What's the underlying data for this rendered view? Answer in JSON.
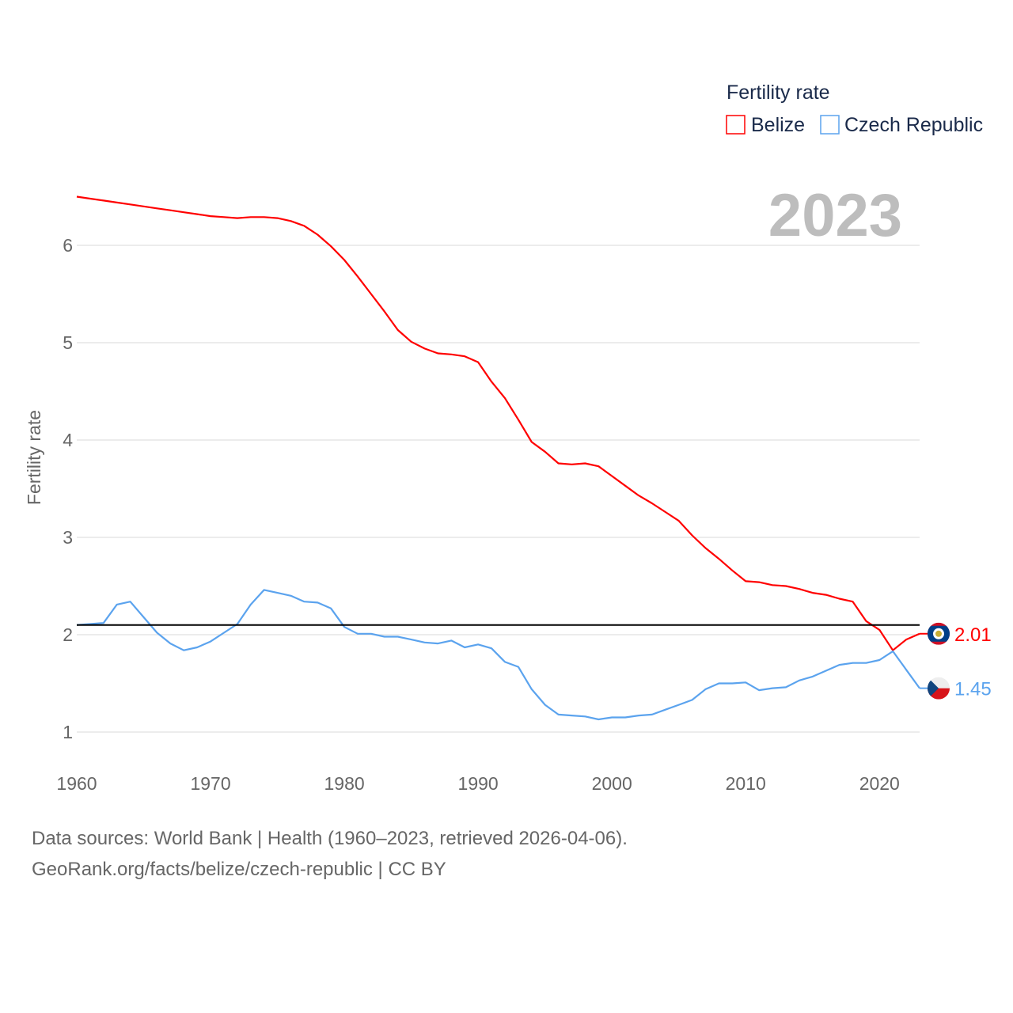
{
  "chart_data": {
    "type": "line",
    "title": "Fertility rate",
    "ylabel": "Fertility rate",
    "xlabel": "",
    "year_label": "2023",
    "xlim": [
      1960,
      2023
    ],
    "ylim": [
      0.85,
      6.6
    ],
    "xticks": [
      1960,
      1970,
      1980,
      1990,
      2000,
      2010,
      2020
    ],
    "yticks": [
      1,
      2,
      3,
      4,
      5,
      6
    ],
    "grid": true,
    "legend_position": "top-right",
    "reference_line": 2.1,
    "x": [
      1960,
      1961,
      1962,
      1963,
      1964,
      1965,
      1966,
      1967,
      1968,
      1969,
      1970,
      1971,
      1972,
      1973,
      1974,
      1975,
      1976,
      1977,
      1978,
      1979,
      1980,
      1981,
      1982,
      1983,
      1984,
      1985,
      1986,
      1987,
      1988,
      1989,
      1990,
      1991,
      1992,
      1993,
      1994,
      1995,
      1996,
      1997,
      1998,
      1999,
      2000,
      2001,
      2002,
      2003,
      2004,
      2005,
      2006,
      2007,
      2008,
      2009,
      2010,
      2011,
      2012,
      2013,
      2014,
      2015,
      2016,
      2017,
      2018,
      2019,
      2020,
      2021,
      2022,
      2023
    ],
    "series": [
      {
        "name": "Belize",
        "color": "#ff0000",
        "end_label": "2.01",
        "values": [
          6.5,
          6.48,
          6.46,
          6.44,
          6.42,
          6.4,
          6.38,
          6.36,
          6.34,
          6.32,
          6.3,
          6.29,
          6.28,
          6.29,
          6.29,
          6.28,
          6.25,
          6.2,
          6.11,
          5.99,
          5.85,
          5.68,
          5.5,
          5.32,
          5.13,
          5.01,
          4.94,
          4.89,
          4.88,
          4.86,
          4.8,
          4.6,
          4.43,
          4.21,
          3.98,
          3.88,
          3.76,
          3.75,
          3.76,
          3.73,
          3.63,
          3.53,
          3.43,
          3.35,
          3.26,
          3.17,
          3.02,
          2.89,
          2.78,
          2.66,
          2.55,
          2.54,
          2.51,
          2.5,
          2.47,
          2.43,
          2.41,
          2.37,
          2.34,
          2.14,
          2.05,
          1.84,
          1.95,
          2.01
        ]
      },
      {
        "name": "Czech Republic",
        "color": "#5ba3ee",
        "end_label": "1.45",
        "values": [
          2.1,
          2.11,
          2.12,
          2.31,
          2.34,
          2.18,
          2.02,
          1.91,
          1.84,
          1.87,
          1.93,
          2.02,
          2.11,
          2.31,
          2.46,
          2.43,
          2.4,
          2.34,
          2.33,
          2.27,
          2.08,
          2.01,
          2.01,
          1.98,
          1.98,
          1.95,
          1.92,
          1.91,
          1.94,
          1.87,
          1.9,
          1.86,
          1.72,
          1.67,
          1.44,
          1.28,
          1.18,
          1.17,
          1.16,
          1.13,
          1.15,
          1.15,
          1.17,
          1.18,
          1.23,
          1.28,
          1.33,
          1.44,
          1.5,
          1.5,
          1.51,
          1.43,
          1.45,
          1.46,
          1.53,
          1.57,
          1.63,
          1.69,
          1.71,
          1.71,
          1.74,
          1.83,
          1.64,
          1.45
        ]
      }
    ]
  },
  "footer": {
    "line1": "Data sources: World Bank | Health (1960–2023, retrieved 2026-04-06).",
    "line2": "GeoRank.org/facts/belize/czech-republic | CC BY"
  }
}
